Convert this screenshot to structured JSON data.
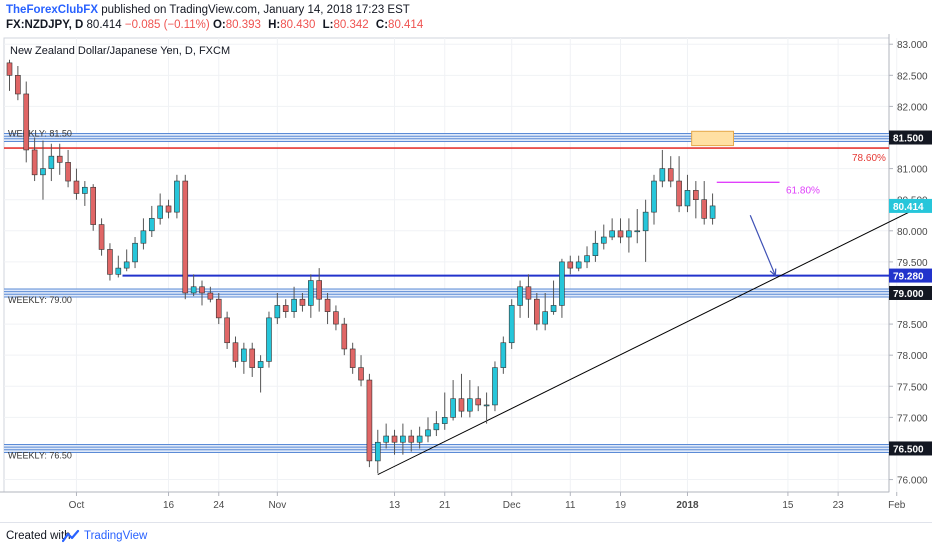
{
  "header": {
    "publisher": "TheForexClubFX",
    "published_text": "published on TradingView.com, January 14, 2018 17:23 EST",
    "symbol": "FX:NZDJPY, D",
    "last": "80.414",
    "change": "−0.085 (−0.11%)",
    "ohlc": [
      {
        "label": "O:",
        "value": "80.393"
      },
      {
        "label": "H:",
        "value": "80.430"
      },
      {
        "label": "L:",
        "value": "80.342"
      },
      {
        "label": "C:",
        "value": "80.414"
      }
    ]
  },
  "footer": {
    "created_with": "Created with",
    "brand": "TradingView",
    "logo_icon": "tradingview-logo-icon"
  },
  "colors": {
    "up": "#26c6da",
    "down": "#e06666",
    "weekly_level": "#5b8bd6",
    "blue_line": "#2233cc",
    "red_line": "#e53935",
    "fib_618": "#e040fb",
    "trendline": "#000000",
    "arrow": "#3f51b5",
    "highlight": "#ffe0a3"
  },
  "chart_data": {
    "type": "candlestick",
    "title": "New Zealand Dollar/Japanese Yen, D, FXCM",
    "ylim": [
      75.8,
      83.1
    ],
    "y_ticks": [
      "83.000",
      "82.500",
      "82.000",
      "81.500",
      "81.000",
      "80.500",
      "80.000",
      "79.500",
      "79.000",
      "78.500",
      "78.000",
      "77.500",
      "77.000",
      "76.500",
      "76.000"
    ],
    "x_ticks": [
      {
        "label": "Oct",
        "i": 8
      },
      {
        "label": "16",
        "i": 19
      },
      {
        "label": "24",
        "i": 25
      },
      {
        "label": "Nov",
        "i": 32
      },
      {
        "label": "13",
        "i": 46
      },
      {
        "label": "21",
        "i": 52
      },
      {
        "label": "Dec",
        "i": 60
      },
      {
        "label": "11",
        "i": 67
      },
      {
        "label": "19",
        "i": 73
      },
      {
        "label": "2018",
        "i": 81
      },
      {
        "label": "15",
        "i": 93
      },
      {
        "label": "23",
        "i": 99
      },
      {
        "label": "Feb",
        "i": 106
      }
    ],
    "grid": true,
    "candles": [
      [
        82.7,
        82.5,
        82.75,
        82.25
      ],
      [
        82.5,
        82.2,
        82.65,
        82.1
      ],
      [
        82.2,
        81.3,
        82.4,
        81.1
      ],
      [
        81.3,
        80.9,
        81.5,
        80.8
      ],
      [
        80.9,
        81.0,
        81.45,
        80.5
      ],
      [
        81.0,
        81.2,
        81.4,
        80.8
      ],
      [
        81.2,
        81.1,
        81.4,
        80.9
      ],
      [
        81.1,
        80.8,
        81.3,
        80.7
      ],
      [
        80.8,
        80.6,
        81.0,
        80.5
      ],
      [
        80.6,
        80.7,
        80.8,
        80.4
      ],
      [
        80.7,
        80.1,
        80.75,
        80.0
      ],
      [
        80.1,
        79.7,
        80.2,
        79.6
      ],
      [
        79.7,
        79.3,
        79.8,
        79.2
      ],
      [
        79.3,
        79.4,
        79.6,
        79.25
      ],
      [
        79.4,
        79.5,
        79.7,
        79.35
      ],
      [
        79.5,
        79.8,
        79.9,
        79.4
      ],
      [
        79.8,
        80.0,
        80.2,
        79.7
      ],
      [
        80.0,
        80.2,
        80.4,
        79.9
      ],
      [
        80.2,
        80.4,
        80.6,
        80.1
      ],
      [
        80.4,
        80.3,
        80.5,
        80.2
      ],
      [
        80.3,
        80.8,
        80.9,
        80.2
      ],
      [
        80.8,
        79.0,
        80.9,
        78.9
      ],
      [
        79.0,
        79.1,
        79.3,
        78.95
      ],
      [
        79.1,
        79.0,
        79.2,
        78.8
      ],
      [
        79.0,
        78.9,
        79.1,
        78.85
      ],
      [
        78.9,
        78.6,
        79.0,
        78.5
      ],
      [
        78.6,
        78.2,
        78.7,
        78.1
      ],
      [
        78.2,
        77.9,
        78.3,
        77.8
      ],
      [
        77.9,
        78.1,
        78.2,
        77.7
      ],
      [
        78.1,
        77.8,
        78.2,
        77.65
      ],
      [
        77.8,
        77.9,
        78.0,
        77.4
      ],
      [
        77.9,
        78.6,
        78.7,
        77.8
      ],
      [
        78.6,
        78.8,
        79.0,
        78.5
      ],
      [
        78.8,
        78.7,
        78.9,
        78.6
      ],
      [
        78.7,
        78.9,
        79.1,
        78.6
      ],
      [
        78.9,
        78.8,
        79.0,
        78.7
      ],
      [
        78.8,
        79.2,
        79.3,
        78.6
      ],
      [
        79.2,
        78.9,
        79.4,
        78.7
      ],
      [
        78.9,
        78.7,
        79.0,
        78.5
      ],
      [
        78.7,
        78.5,
        78.8,
        78.4
      ],
      [
        78.5,
        78.1,
        78.6,
        78.0
      ],
      [
        78.1,
        77.8,
        78.2,
        77.7
      ],
      [
        77.8,
        77.6,
        78.0,
        77.5
      ],
      [
        77.6,
        76.3,
        77.7,
        76.2
      ],
      [
        76.3,
        76.6,
        76.8,
        76.1
      ],
      [
        76.6,
        76.7,
        76.9,
        76.5
      ],
      [
        76.7,
        76.6,
        76.8,
        76.4
      ],
      [
        76.6,
        76.7,
        76.9,
        76.4
      ],
      [
        76.7,
        76.6,
        76.8,
        76.45
      ],
      [
        76.6,
        76.7,
        76.85,
        76.5
      ],
      [
        76.7,
        76.8,
        77.0,
        76.6
      ],
      [
        76.8,
        76.9,
        77.1,
        76.7
      ],
      [
        76.9,
        77.0,
        77.4,
        76.8
      ],
      [
        77.0,
        77.3,
        77.6,
        76.95
      ],
      [
        77.3,
        77.1,
        77.7,
        77.0
      ],
      [
        77.1,
        77.3,
        77.6,
        77.0
      ],
      [
        77.3,
        77.2,
        77.5,
        77.1
      ],
      [
        77.2,
        77.2,
        77.4,
        76.9
      ],
      [
        77.2,
        77.8,
        77.9,
        77.1
      ],
      [
        77.8,
        78.2,
        78.3,
        77.7
      ],
      [
        78.2,
        78.8,
        78.9,
        78.1
      ],
      [
        78.8,
        79.1,
        79.2,
        78.6
      ],
      [
        79.1,
        78.9,
        79.3,
        78.6
      ],
      [
        78.9,
        78.5,
        79.0,
        78.4
      ],
      [
        78.5,
        78.7,
        79.0,
        78.4
      ],
      [
        78.7,
        78.8,
        79.2,
        78.65
      ],
      [
        78.8,
        79.5,
        79.55,
        78.6
      ],
      [
        79.5,
        79.4,
        79.6,
        79.3
      ],
      [
        79.4,
        79.5,
        79.6,
        79.35
      ],
      [
        79.5,
        79.6,
        79.75,
        79.4
      ],
      [
        79.6,
        79.8,
        80.0,
        79.5
      ],
      [
        79.8,
        79.9,
        80.1,
        79.7
      ],
      [
        79.9,
        80.0,
        80.2,
        79.85
      ],
      [
        80.0,
        79.9,
        80.2,
        79.8
      ],
      [
        79.9,
        80.0,
        80.2,
        79.65
      ],
      [
        80.0,
        80.0,
        80.35,
        79.8
      ],
      [
        80.0,
        80.3,
        80.5,
        79.5
      ],
      [
        80.3,
        80.8,
        80.9,
        80.1
      ],
      [
        80.8,
        81.0,
        81.3,
        80.7
      ],
      [
        81.0,
        80.8,
        81.2,
        80.7
      ],
      [
        80.8,
        80.4,
        81.2,
        80.3
      ],
      [
        80.4,
        80.65,
        80.9,
        80.3
      ],
      [
        80.65,
        80.5,
        80.8,
        80.2
      ],
      [
        80.5,
        80.2,
        80.8,
        80.1
      ],
      [
        80.2,
        80.4,
        80.6,
        80.1
      ]
    ],
    "levels": [
      {
        "name": "weekly-81.50",
        "label": "WEEKLY: 81.50",
        "price": 81.5,
        "price_label": "81.500",
        "style": "weekly"
      },
      {
        "name": "weekly-79.00",
        "label": "WEEKLY: 79.00",
        "price": 79.0,
        "price_label": "79.000",
        "style": "weekly"
      },
      {
        "name": "weekly-76.50",
        "label": "WEEKLY: 76.50",
        "price": 76.5,
        "price_label": "76.500",
        "style": "weekly"
      },
      {
        "name": "level-79.28",
        "label": "",
        "price": 79.28,
        "price_label": "79.280",
        "style": "blue"
      }
    ],
    "fib_levels": [
      {
        "label": "78.60%",
        "price": 81.33
      },
      {
        "label": "61.80%",
        "price": 80.78
      }
    ],
    "current_price_label": "80.414",
    "trendline": {
      "i1": 44,
      "p1": 76.08,
      "i2": 112,
      "p2": 80.6
    },
    "arrow": {
      "i1": 88.5,
      "p1": 80.25,
      "i2": 91.5,
      "p2": 79.28
    }
  }
}
